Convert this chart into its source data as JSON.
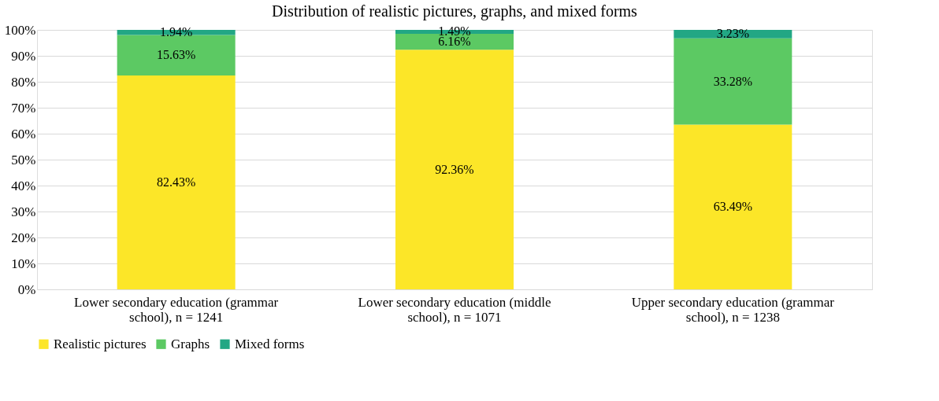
{
  "chart_data": {
    "type": "bar",
    "title": "Distribution of realistic pictures, graphs, and mixed forms",
    "categories": [
      "Lower secondary education (grammar school), n = 1241",
      "Lower secondary education (middle school), n = 1071",
      "Upper secondary education (grammar school), n = 1238"
    ],
    "stacked": true,
    "series": [
      {
        "name": "Realistic pictures",
        "color": "#fce628",
        "values": [
          82.43,
          92.36,
          63.49
        ],
        "value_labels": [
          "82.43%",
          "92.36%",
          "63.49%"
        ]
      },
      {
        "name": "Graphs",
        "color": "#5cc963",
        "values": [
          15.63,
          6.16,
          33.28
        ],
        "value_labels": [
          "15.63%",
          "6.16%",
          "33.28%"
        ]
      },
      {
        "name": "Mixed forms",
        "color": "#22a784",
        "values": [
          1.94,
          1.49,
          3.23
        ],
        "value_labels": [
          "1.94%",
          "1.49%",
          "3.23%"
        ]
      }
    ],
    "ylim": [
      0,
      100
    ],
    "yticks": [
      {
        "value": 0,
        "label": "0%"
      },
      {
        "value": 10,
        "label": "10%"
      },
      {
        "value": 20,
        "label": "20%"
      },
      {
        "value": 30,
        "label": "30%"
      },
      {
        "value": 40,
        "label": "40%"
      },
      {
        "value": 50,
        "label": "50%"
      },
      {
        "value": 60,
        "label": "60%"
      },
      {
        "value": 70,
        "label": "70%"
      },
      {
        "value": 80,
        "label": "80%"
      },
      {
        "value": 90,
        "label": "90%"
      },
      {
        "value": 100,
        "label": "100%"
      }
    ],
    "grid": "y",
    "legend": "bottom"
  }
}
